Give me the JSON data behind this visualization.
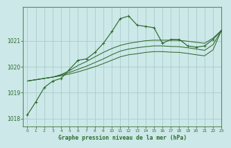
{
  "title": "Graphe pression niveau de la mer (hPa)",
  "background_color": "#cce8e8",
  "grid_color": "#aacccc",
  "line_color": "#2d6a2d",
  "xlim": [
    -0.5,
    23
  ],
  "ylim": [
    1017.7,
    1022.3
  ],
  "xticks": [
    0,
    1,
    2,
    3,
    4,
    5,
    6,
    7,
    8,
    9,
    10,
    11,
    12,
    13,
    14,
    15,
    16,
    17,
    18,
    19,
    20,
    21,
    22,
    23
  ],
  "yticks": [
    1018,
    1019,
    1020,
    1021
  ],
  "series_main": [
    1018.15,
    1018.65,
    1019.2,
    1019.45,
    1019.55,
    1019.9,
    1020.25,
    1020.3,
    1020.55,
    1020.9,
    1021.35,
    1021.85,
    1021.95,
    1021.6,
    1021.55,
    1021.5,
    1020.9,
    1021.05,
    1021.05,
    1020.8,
    1020.75,
    1020.8,
    1021.05,
    1021.4
  ],
  "series_fan": [
    [
      1019.45,
      1019.5,
      1019.55,
      1019.6,
      1019.7,
      1019.85,
      1020.05,
      1020.2,
      1020.38,
      1020.55,
      1020.7,
      1020.82,
      1020.9,
      1020.95,
      1021.0,
      1021.02,
      1021.02,
      1021.02,
      1021.01,
      1020.98,
      1020.94,
      1020.9,
      1021.1,
      1021.4
    ],
    [
      1019.45,
      1019.5,
      1019.55,
      1019.6,
      1019.68,
      1019.78,
      1019.9,
      1020.02,
      1020.16,
      1020.3,
      1020.46,
      1020.6,
      1020.68,
      1020.73,
      1020.77,
      1020.8,
      1020.8,
      1020.78,
      1020.77,
      1020.73,
      1020.68,
      1020.63,
      1020.85,
      1021.4
    ],
    [
      1019.45,
      1019.5,
      1019.55,
      1019.6,
      1019.65,
      1019.72,
      1019.8,
      1019.9,
      1020.0,
      1020.12,
      1020.25,
      1020.38,
      1020.46,
      1020.5,
      1020.55,
      1020.58,
      1020.58,
      1020.56,
      1020.55,
      1020.51,
      1020.46,
      1020.42,
      1020.65,
      1021.4
    ]
  ]
}
